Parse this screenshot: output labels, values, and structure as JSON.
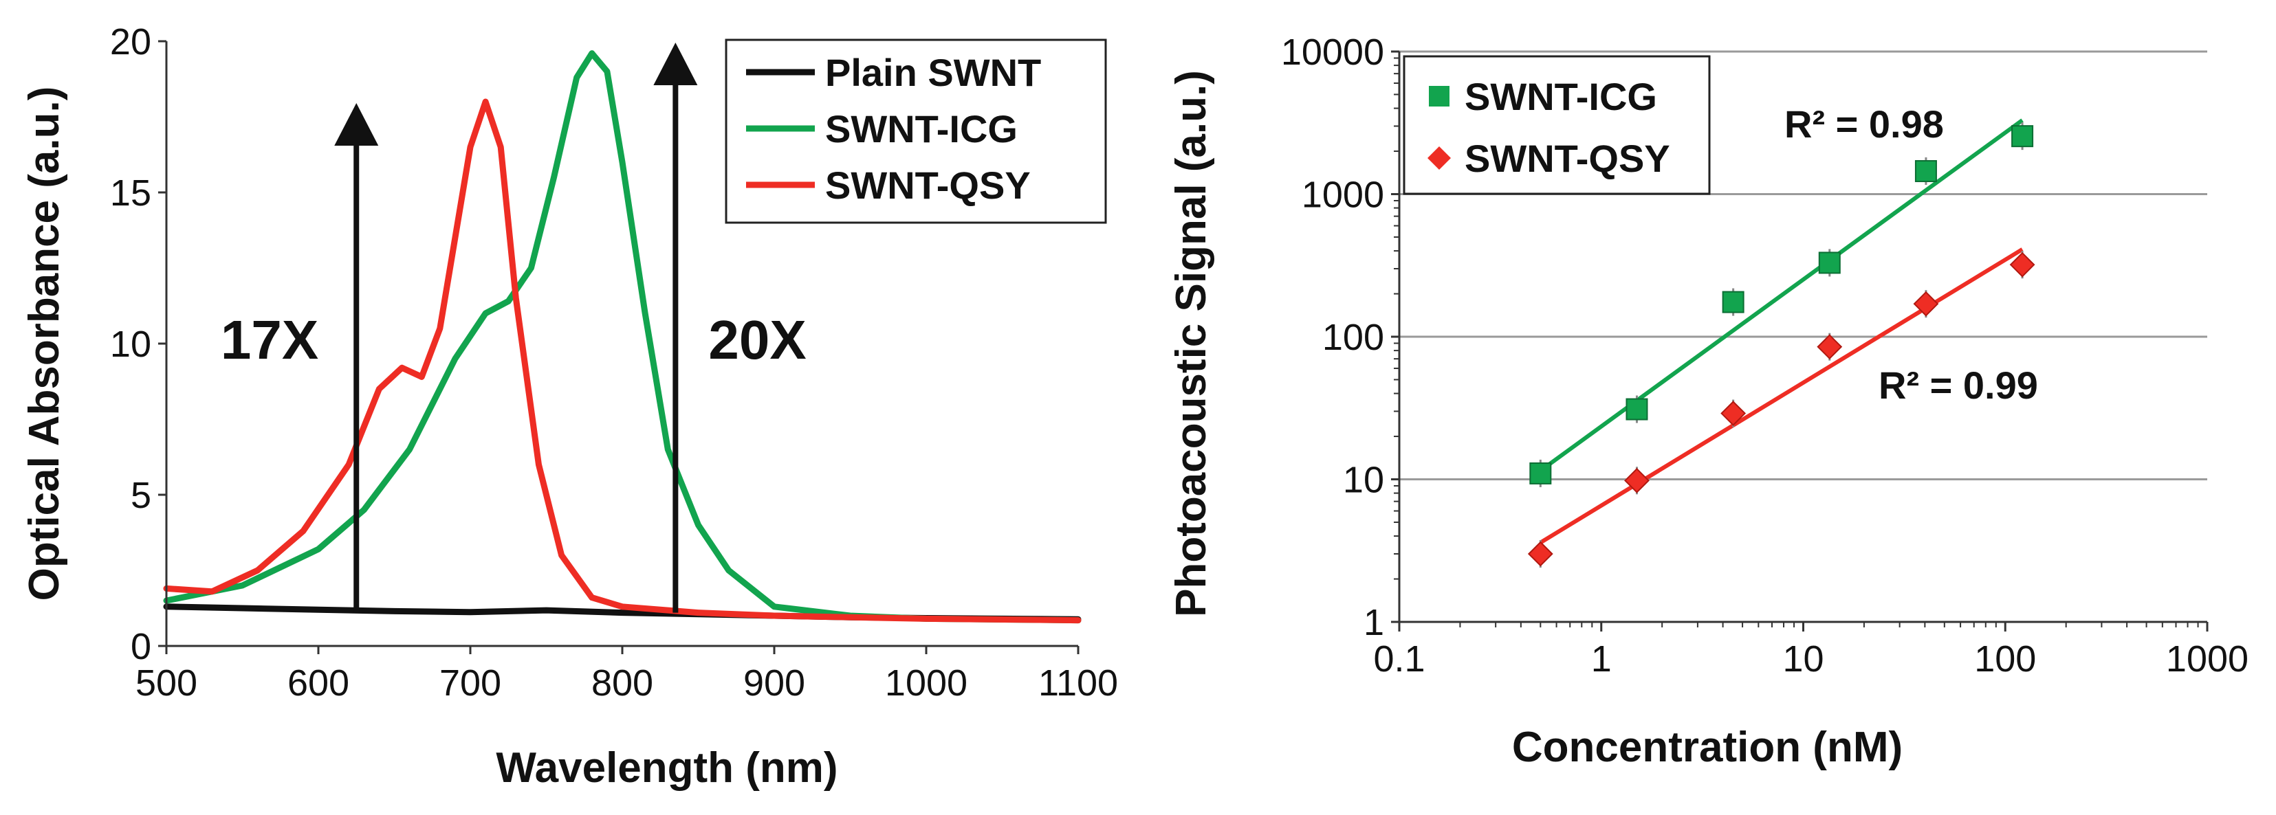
{
  "chart_data": [
    {
      "type": "line",
      "panel": "left",
      "xlabel": "Wavelength (nm)",
      "ylabel": "Optical Absorbance (a.u.)",
      "xlim": [
        500,
        1100
      ],
      "ylim": [
        0,
        20
      ],
      "x_ticks": [
        500,
        600,
        700,
        800,
        900,
        1000,
        1100
      ],
      "y_ticks": [
        0,
        5,
        10,
        15,
        20
      ],
      "legend_position": "top-right",
      "series": [
        {
          "name": "Plain SWNT",
          "color": "#111111",
          "x": [
            500,
            550,
            600,
            650,
            700,
            750,
            800,
            850,
            900,
            950,
            1000,
            1050,
            1100
          ],
          "y": [
            1.3,
            1.25,
            1.2,
            1.15,
            1.12,
            1.18,
            1.1,
            1.05,
            1.0,
            0.95,
            0.92,
            0.9,
            0.88
          ]
        },
        {
          "name": "SWNT-ICG",
          "color": "#12a44e",
          "x": [
            500,
            550,
            600,
            630,
            660,
            690,
            710,
            725,
            740,
            755,
            770,
            780,
            790,
            800,
            815,
            830,
            850,
            870,
            900,
            950,
            1000,
            1100
          ],
          "y": [
            1.5,
            2.0,
            3.2,
            4.5,
            6.5,
            9.5,
            11.0,
            11.4,
            12.5,
            15.5,
            18.8,
            19.6,
            19.0,
            16.0,
            11.0,
            6.5,
            4.0,
            2.5,
            1.3,
            1.0,
            0.9,
            0.85
          ]
        },
        {
          "name": "SWNT-QSY",
          "color": "#ee2d24",
          "x": [
            500,
            530,
            560,
            590,
            620,
            640,
            655,
            668,
            680,
            690,
            700,
            710,
            720,
            730,
            745,
            760,
            780,
            800,
            850,
            900,
            1000,
            1100
          ],
          "y": [
            1.9,
            1.8,
            2.5,
            3.8,
            6.0,
            8.5,
            9.2,
            8.9,
            10.5,
            13.5,
            16.5,
            18.0,
            16.5,
            11.5,
            6.0,
            3.0,
            1.6,
            1.3,
            1.1,
            1.0,
            0.9,
            0.85
          ]
        }
      ],
      "annotations": [
        {
          "type": "arrow",
          "x": 625,
          "y_from": 1.1,
          "y_to": 17.5,
          "label": "17X"
        },
        {
          "type": "arrow",
          "x": 835,
          "y_from": 1.1,
          "y_to": 19.5,
          "label": "20X"
        }
      ]
    },
    {
      "type": "scatter",
      "panel": "right",
      "xlabel": "Concentration (nM)",
      "ylabel": "Photoacoustic Signal (a.u.)",
      "x_scale": "log",
      "y_scale": "log",
      "xlim": [
        0.1,
        1000
      ],
      "ylim": [
        1,
        10000
      ],
      "x_ticks": [
        0.1,
        1,
        10,
        100,
        1000
      ],
      "x_tick_labels": [
        "0.1",
        "1",
        "10",
        "100",
        "1000"
      ],
      "y_ticks": [
        1,
        10,
        100,
        1000,
        10000
      ],
      "y_tick_labels": [
        "1",
        "10",
        "100",
        "1000",
        "10000"
      ],
      "grid": "horizontal major",
      "legend_position": "top-left",
      "series": [
        {
          "name": "SWNT-ICG",
          "color": "#12a44e",
          "marker": "square",
          "x": [
            0.5,
            1.5,
            4.5,
            13.5,
            40.5,
            121.5
          ],
          "y": [
            11,
            31,
            175,
            330,
            1450,
            2550
          ],
          "fit": {
            "x": [
              0.5,
              121.5
            ],
            "y": [
              11.5,
              3300
            ]
          },
          "r2_label": "R² = 0.98"
        },
        {
          "name": "SWNT-QSY",
          "color": "#ee2d24",
          "marker": "diamond",
          "x": [
            0.5,
            1.5,
            4.5,
            13.5,
            40.5,
            121.5
          ],
          "y": [
            3,
            9.8,
            29,
            85,
            170,
            320
          ],
          "fit": {
            "x": [
              0.5,
              121.5
            ],
            "y": [
              3.6,
              410
            ]
          },
          "r2_label": "R² = 0.99"
        }
      ]
    }
  ]
}
